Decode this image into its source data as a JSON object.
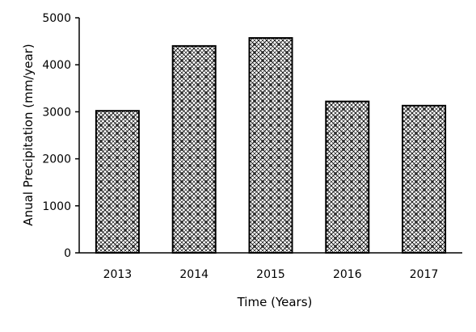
{
  "chart_data": {
    "type": "bar",
    "categories": [
      "2013",
      "2014",
      "2015",
      "2016",
      "2017"
    ],
    "values": [
      3020,
      4400,
      4570,
      3220,
      3130
    ],
    "title": "",
    "xlabel": "Time (Years)",
    "ylabel": "Anual Precipitation (mm/year)",
    "ylim": [
      0,
      5000
    ],
    "yticks": [
      0,
      1000,
      2000,
      3000,
      4000,
      5000
    ],
    "ytick_labels": [
      "0",
      "1000",
      "2000",
      "3000",
      "4000",
      "5000"
    ],
    "grid": false,
    "legend": "none",
    "bar_fill": "crosshatch pattern",
    "colors": {
      "bar_fill": "#ffffff",
      "bar_pattern": "#000000",
      "bar_stroke": "#000000",
      "axis": "#000000",
      "text": "#000000"
    }
  }
}
